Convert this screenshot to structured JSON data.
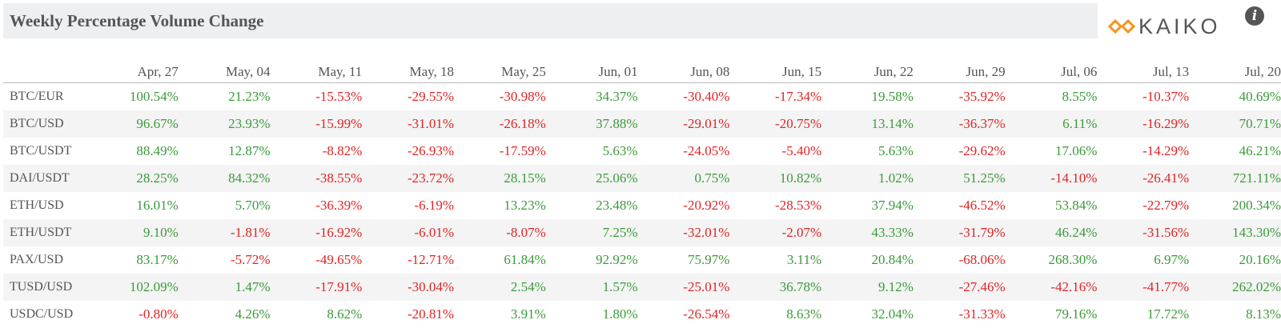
{
  "header": {
    "title": "Weekly Percentage Volume Change",
    "logo_text": "KAIKO",
    "info_icon": "info-icon"
  },
  "colors": {
    "positive": "#3a9a3a",
    "negative": "#e02424",
    "logo_orange": "#f7931a"
  },
  "table": {
    "columns": [
      "Apr, 27",
      "May, 04",
      "May, 11",
      "May, 18",
      "May, 25",
      "Jun, 01",
      "Jun, 08",
      "Jun, 15",
      "Jun, 22",
      "Jun, 29",
      "Jul, 06",
      "Jul, 13",
      "Jul, 20"
    ],
    "rows": [
      {
        "pair": "BTC/EUR",
        "values": [
          "100.54%",
          "21.23%",
          "-15.53%",
          "-29.55%",
          "-30.98%",
          "34.37%",
          "-30.40%",
          "-17.34%",
          "19.58%",
          "-35.92%",
          "8.55%",
          "-10.37%",
          "40.69%"
        ]
      },
      {
        "pair": "BTC/USD",
        "values": [
          "96.67%",
          "23.93%",
          "-15.99%",
          "-31.01%",
          "-26.18%",
          "37.88%",
          "-29.01%",
          "-20.75%",
          "13.14%",
          "-36.37%",
          "6.11%",
          "-16.29%",
          "70.71%"
        ]
      },
      {
        "pair": "BTC/USDT",
        "values": [
          "88.49%",
          "12.87%",
          "-8.82%",
          "-26.93%",
          "-17.59%",
          "5.63%",
          "-24.05%",
          "-5.40%",
          "5.63%",
          "-29.62%",
          "17.06%",
          "-14.29%",
          "46.21%"
        ]
      },
      {
        "pair": "DAI/USDT",
        "values": [
          "28.25%",
          "84.32%",
          "-38.55%",
          "-23.72%",
          "28.15%",
          "25.06%",
          "0.75%",
          "10.82%",
          "1.02%",
          "51.25%",
          "-14.10%",
          "-26.41%",
          "721.11%"
        ]
      },
      {
        "pair": "ETH/USD",
        "values": [
          "16.01%",
          "5.70%",
          "-36.39%",
          "-6.19%",
          "13.23%",
          "23.48%",
          "-20.92%",
          "-28.53%",
          "37.94%",
          "-46.52%",
          "53.84%",
          "-22.79%",
          "200.34%"
        ]
      },
      {
        "pair": "ETH/USDT",
        "values": [
          "9.10%",
          "-1.81%",
          "-16.92%",
          "-6.01%",
          "-8.07%",
          "7.25%",
          "-32.01%",
          "-2.07%",
          "43.33%",
          "-31.79%",
          "46.24%",
          "-31.56%",
          "143.30%"
        ]
      },
      {
        "pair": "PAX/USD",
        "values": [
          "83.17%",
          "-5.72%",
          "-49.65%",
          "-12.71%",
          "61.84%",
          "92.92%",
          "75.97%",
          "3.11%",
          "20.84%",
          "-68.06%",
          "268.30%",
          "6.97%",
          "20.16%"
        ]
      },
      {
        "pair": "TUSD/USD",
        "values": [
          "102.09%",
          "1.47%",
          "-17.91%",
          "-30.04%",
          "2.54%",
          "1.57%",
          "-25.01%",
          "36.78%",
          "9.12%",
          "-27.46%",
          "-42.16%",
          "-41.77%",
          "262.02%"
        ]
      },
      {
        "pair": "USDC/USD",
        "values": [
          "-0.80%",
          "4.26%",
          "8.62%",
          "-20.81%",
          "3.91%",
          "1.80%",
          "-26.54%",
          "8.63%",
          "32.04%",
          "-31.33%",
          "79.16%",
          "17.72%",
          "8.13%"
        ]
      }
    ]
  }
}
